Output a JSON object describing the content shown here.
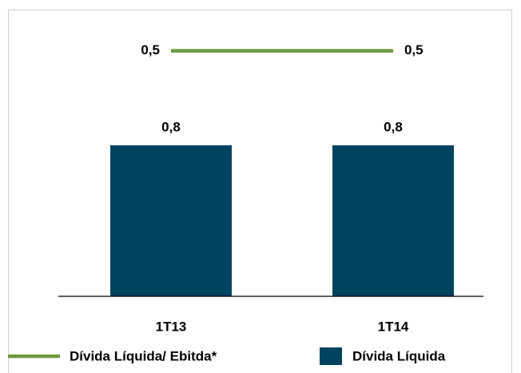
{
  "chart_data": {
    "type": "bar",
    "categories": [
      "1T13",
      "1T14"
    ],
    "series": [
      {
        "name": "Dívida Líquida/ Ebitda*",
        "type": "line",
        "axis": "y2",
        "color": "#6b9a3c",
        "values": [
          0.5,
          0.5
        ],
        "value_labels": [
          "0,5",
          "0,5"
        ]
      },
      {
        "name": "Dívida Líquida",
        "type": "bar",
        "color": "#00435f",
        "values": [
          0.8,
          0.8
        ],
        "value_labels": [
          "0,8",
          "0,8"
        ]
      }
    ],
    "ylim": [
      0,
      1.4
    ],
    "y2lim": [
      -0.8,
      0.6
    ],
    "legend": "bottom"
  }
}
